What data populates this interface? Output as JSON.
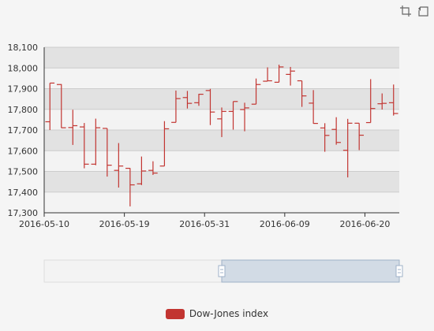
{
  "toolbox": {
    "items": [
      {
        "name": "data-zoom-icon"
      },
      {
        "name": "restore-icon"
      }
    ]
  },
  "legend": {
    "label": "Dow-Jones index",
    "color": "#c23531"
  },
  "colors": {
    "up": "#c23531",
    "down": "#c23531",
    "band": "#e2e2e2",
    "band_alt": "#f3f3f3"
  },
  "chart_data": {
    "type": "ohlc",
    "title": "",
    "xlabel": "",
    "ylabel": "",
    "ylim": [
      17300,
      18100
    ],
    "yticks": [
      17300,
      17400,
      17500,
      17600,
      17700,
      17800,
      17900,
      18000,
      18100
    ],
    "ytick_labels": [
      "17,300",
      "17,400",
      "17,500",
      "17,600",
      "17,700",
      "17,800",
      "17,900",
      "18,000",
      "18,100"
    ],
    "xtick_labels": [
      "2016-05-10",
      "2016-05-19",
      "2016-05-31",
      "2016-06-09",
      "2016-06-20"
    ],
    "grid": true,
    "legend_position": "bottom",
    "series": [
      {
        "name": "Dow-Jones index",
        "points": [
          {
            "date": "2016-05-10",
            "open": 17740,
            "close": 17927,
            "low": 17700,
            "high": 17927
          },
          {
            "date": "2016-05-11",
            "open": 17920,
            "close": 17711,
            "low": 17710,
            "high": 17922
          },
          {
            "date": "2016-05-12",
            "open": 17712,
            "close": 17721,
            "low": 17628,
            "high": 17798
          },
          {
            "date": "2016-05-13",
            "open": 17715,
            "close": 17535,
            "low": 17515,
            "high": 17734
          },
          {
            "date": "2016-05-16",
            "open": 17535,
            "close": 17711,
            "low": 17530,
            "high": 17755
          },
          {
            "date": "2016-05-17",
            "open": 17708,
            "close": 17530,
            "low": 17475,
            "high": 17708
          },
          {
            "date": "2016-05-18",
            "open": 17505,
            "close": 17526,
            "low": 17422,
            "high": 17637
          },
          {
            "date": "2016-05-19",
            "open": 17515,
            "close": 17435,
            "low": 17331,
            "high": 17516
          },
          {
            "date": "2016-05-20",
            "open": 17440,
            "close": 17502,
            "low": 17434,
            "high": 17572
          },
          {
            "date": "2016-05-23",
            "open": 17505,
            "close": 17492,
            "low": 17483,
            "high": 17549
          },
          {
            "date": "2016-05-24",
            "open": 17526,
            "close": 17706,
            "low": 17526,
            "high": 17743
          },
          {
            "date": "2016-05-25",
            "open": 17737,
            "close": 17852,
            "low": 17737,
            "high": 17891
          },
          {
            "date": "2016-05-26",
            "open": 17857,
            "close": 17829,
            "low": 17804,
            "high": 17889
          },
          {
            "date": "2016-05-27",
            "open": 17832,
            "close": 17873,
            "low": 17817,
            "high": 17875
          },
          {
            "date": "2016-05-31",
            "open": 17891,
            "close": 17787,
            "low": 17724,
            "high": 17899
          },
          {
            "date": "2016-06-01",
            "open": 17754,
            "close": 17790,
            "low": 17666,
            "high": 17809
          },
          {
            "date": "2016-06-02",
            "open": 17790,
            "close": 17838,
            "low": 17702,
            "high": 17838
          },
          {
            "date": "2016-06-03",
            "open": 17799,
            "close": 17807,
            "low": 17694,
            "high": 17832
          },
          {
            "date": "2016-06-06",
            "open": 17825,
            "close": 17920,
            "low": 17825,
            "high": 17949
          },
          {
            "date": "2016-06-07",
            "open": 17936,
            "close": 17938,
            "low": 17936,
            "high": 18003
          },
          {
            "date": "2016-06-08",
            "open": 17931,
            "close": 18005,
            "low": 17931,
            "high": 18016
          },
          {
            "date": "2016-06-09",
            "open": 17969,
            "close": 17985,
            "low": 17915,
            "high": 18005
          },
          {
            "date": "2016-06-10",
            "open": 17938,
            "close": 17865,
            "low": 17812,
            "high": 17938
          },
          {
            "date": "2016-06-13",
            "open": 17830,
            "close": 17732,
            "low": 17731,
            "high": 17893
          },
          {
            "date": "2016-06-14",
            "open": 17710,
            "close": 17674,
            "low": 17595,
            "high": 17733
          },
          {
            "date": "2016-06-15",
            "open": 17703,
            "close": 17640,
            "low": 17629,
            "high": 17762
          },
          {
            "date": "2016-06-16",
            "open": 17602,
            "close": 17733,
            "low": 17471,
            "high": 17754
          },
          {
            "date": "2016-06-17",
            "open": 17733,
            "close": 17675,
            "low": 17603,
            "high": 17733
          },
          {
            "date": "2016-06-20",
            "open": 17736,
            "close": 17804,
            "low": 17736,
            "high": 17946
          },
          {
            "date": "2016-06-21",
            "open": 17827,
            "close": 17829,
            "low": 17799,
            "high": 17877
          },
          {
            "date": "2016-06-22",
            "open": 17832,
            "close": 17780,
            "low": 17770,
            "high": 17920
          }
        ]
      }
    ],
    "datazoom": {
      "start": 0.5,
      "end": 1.0
    }
  }
}
